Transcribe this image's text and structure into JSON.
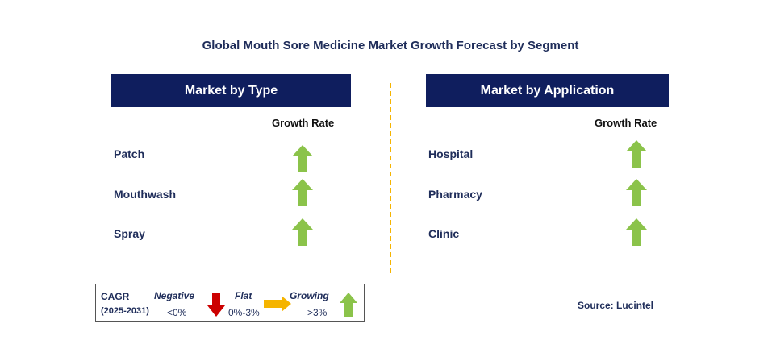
{
  "title": "Global Mouth Sore Medicine Market Growth Forecast by Segment",
  "colors": {
    "header_bg": "#0f1e5e",
    "title_text": "#1f2d5a",
    "growing": "#8bc34a",
    "negative": "#cc0000",
    "flat": "#f5b400",
    "divider": "#f5b400"
  },
  "type_panel": {
    "header": "Market by Type",
    "growth_label": "Growth Rate",
    "rows": [
      {
        "label": "Patch",
        "trend": "growing"
      },
      {
        "label": "Mouthwash",
        "trend": "growing"
      },
      {
        "label": "Spray",
        "trend": "growing"
      }
    ]
  },
  "application_panel": {
    "header": "Market by Application",
    "growth_label": "Growth Rate",
    "rows": [
      {
        "label": "Hospital",
        "trend": "growing"
      },
      {
        "label": "Pharmacy",
        "trend": "growing"
      },
      {
        "label": "Clinic",
        "trend": "growing"
      }
    ]
  },
  "legend": {
    "cagr_label": "CAGR",
    "period": "(2025-2031)",
    "negative": {
      "label": "Negative",
      "range": "<0%",
      "icon": "down-arrow-icon"
    },
    "flat": {
      "label": "Flat",
      "range": "0%-3%",
      "icon": "right-arrow-icon"
    },
    "growing": {
      "label": "Growing",
      "range": ">3%",
      "icon": "up-arrow-icon"
    }
  },
  "source": "Source: Lucintel"
}
